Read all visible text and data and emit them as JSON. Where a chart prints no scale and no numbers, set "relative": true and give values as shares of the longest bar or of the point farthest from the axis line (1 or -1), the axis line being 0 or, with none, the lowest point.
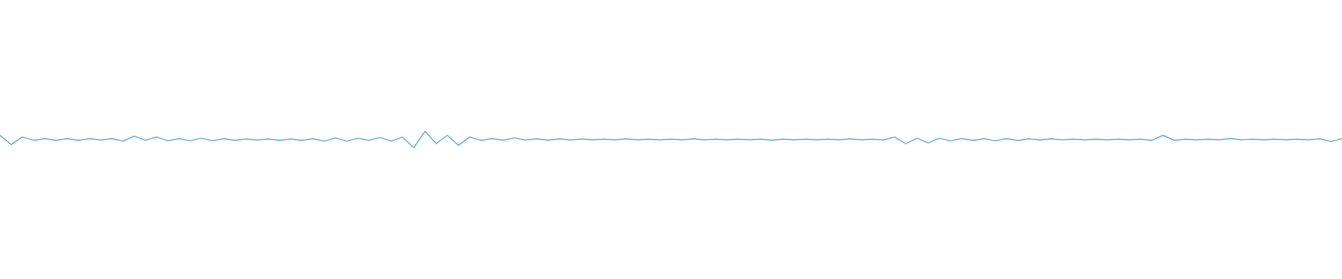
{
  "chart_data": {
    "type": "line",
    "relative": true,
    "color": "#4fa6e2",
    "categories": [
      null,
      null,
      null,
      null,
      null,
      null,
      null,
      null,
      null,
      null,
      null,
      null,
      null,
      null,
      null,
      null,
      null,
      null,
      null,
      null,
      null,
      null,
      null,
      null,
      null,
      null,
      null,
      null,
      null,
      null,
      null,
      null,
      null,
      null,
      null,
      null,
      null,
      null,
      null,
      null,
      null,
      null,
      null,
      null,
      null,
      null,
      null,
      null,
      null,
      null,
      null,
      null,
      null,
      null,
      null,
      null,
      null,
      null,
      null,
      null,
      null,
      null,
      null,
      null,
      null,
      null,
      null,
      null,
      null,
      null,
      null,
      null,
      null,
      null,
      null,
      null,
      null,
      null,
      null,
      null,
      null,
      null,
      null,
      null,
      null,
      null,
      null,
      null,
      null,
      null,
      null,
      null,
      null,
      null,
      null,
      null,
      null,
      null,
      null,
      null,
      null,
      null,
      null,
      null,
      null,
      null,
      null,
      null,
      null,
      null,
      null,
      null,
      null,
      null,
      null,
      null,
      null,
      null,
      null,
      null,
      null
    ],
    "values": [
      0.75,
      0.2,
      0.65,
      0.45,
      0.55,
      0.45,
      0.55,
      0.45,
      0.55,
      0.47,
      0.55,
      0.4,
      0.7,
      0.45,
      0.65,
      0.42,
      0.55,
      0.42,
      0.58,
      0.42,
      0.55,
      0.45,
      0.53,
      0.47,
      0.53,
      0.45,
      0.53,
      0.45,
      0.55,
      0.4,
      0.6,
      0.4,
      0.58,
      0.45,
      0.62,
      0.4,
      0.65,
      0,
      1,
      0.25,
      0.75,
      0.15,
      0.65,
      0.45,
      0.55,
      0.46,
      0.6,
      0.47,
      0.54,
      0.46,
      0.54,
      0.47,
      0.53,
      0.48,
      0.52,
      0.48,
      0.54,
      0.48,
      0.52,
      0.48,
      0.52,
      0.48,
      0.54,
      0.48,
      0.52,
      0.48,
      0.52,
      0.48,
      0.52,
      0.46,
      0.52,
      0.48,
      0.52,
      0.48,
      0.52,
      0.48,
      0.54,
      0.48,
      0.52,
      0.48,
      0.65,
      0.25,
      0.58,
      0.3,
      0.58,
      0.42,
      0.55,
      0.45,
      0.55,
      0.42,
      0.55,
      0.44,
      0.54,
      0.47,
      0.54,
      0.48,
      0.52,
      0.48,
      0.52,
      0.48,
      0.52,
      0.48,
      0.52,
      0.45,
      0.75,
      0.45,
      0.52,
      0.48,
      0.52,
      0.48,
      0.56,
      0.48,
      0.52,
      0.48,
      0.52,
      0.48,
      0.52,
      0.48,
      0.54,
      0.38,
      0.55
    ]
  }
}
